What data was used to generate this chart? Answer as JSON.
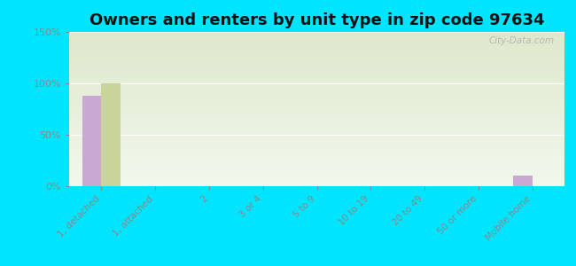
{
  "title": "Owners and renters by unit type in zip code 97634",
  "categories": [
    "1, detached",
    "1, attached",
    "2",
    "3 or 4",
    "5 to 9",
    "10 to 19",
    "20 to 49",
    "50 or more",
    "Mobile home"
  ],
  "owner_values": [
    88,
    0,
    0,
    0,
    0,
    0,
    0,
    0,
    10
  ],
  "renter_values": [
    100,
    0,
    0,
    0,
    0,
    0,
    0,
    0,
    0
  ],
  "owner_color": "#c9a8d4",
  "renter_color": "#c8d49a",
  "background_color": "#00e5ff",
  "plot_bg_top": "#dde8cc",
  "plot_bg_bottom": "#f2f7ec",
  "ylim": [
    0,
    150
  ],
  "yticks": [
    0,
    50,
    100,
    150
  ],
  "ytick_labels": [
    "0%",
    "50%",
    "100%",
    "150%"
  ],
  "title_fontsize": 13,
  "watermark": "City-Data.com",
  "tick_color": "#888888",
  "grid_color": "#ffffff"
}
